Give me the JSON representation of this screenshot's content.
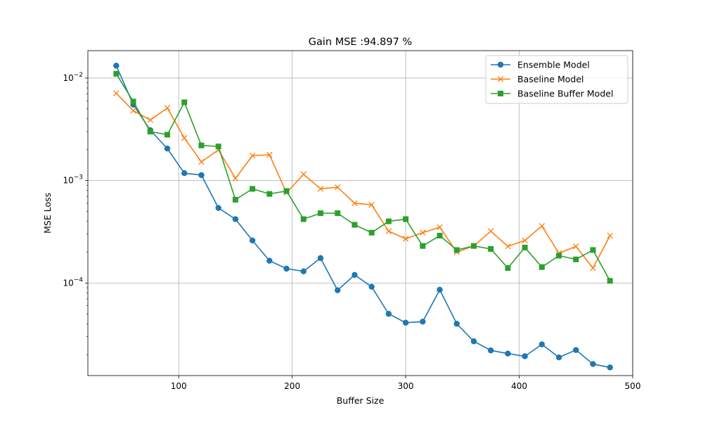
{
  "chart_data": {
    "type": "line",
    "title": "Gain MSE :94.897 %",
    "xlabel": "Buffer Size",
    "ylabel": "MSE Loss",
    "yscale": "log",
    "xlim": [
      20,
      500
    ],
    "ylim": [
      1.25e-05,
      0.0185
    ],
    "grid": true,
    "legend_position": "top-right",
    "x": [
      45,
      60,
      75,
      90,
      105,
      120,
      135,
      150,
      165,
      180,
      195,
      210,
      225,
      240,
      255,
      270,
      285,
      300,
      315,
      330,
      345,
      360,
      375,
      390,
      405,
      420,
      435,
      450,
      465,
      480
    ],
    "x_ticks": [
      {
        "value": 100,
        "label": "100"
      },
      {
        "value": 200,
        "label": "200"
      },
      {
        "value": 300,
        "label": "300"
      },
      {
        "value": 400,
        "label": "400"
      },
      {
        "value": 500,
        "label": "500"
      }
    ],
    "y_ticks": [
      {
        "value": 0.0001,
        "base": "10",
        "exp": "−4"
      },
      {
        "value": 0.001,
        "base": "10",
        "exp": "−3"
      },
      {
        "value": 0.01,
        "base": "10",
        "exp": "−2"
      }
    ],
    "series": [
      {
        "name": "Ensemble Model",
        "color": "#1f77b4",
        "marker": "circle",
        "values": [
          0.0132,
          0.0055,
          0.0031,
          0.00205,
          0.00118,
          0.00113,
          0.00054,
          0.00042,
          0.00026,
          0.000165,
          0.000138,
          0.00013,
          0.000175,
          8.5e-05,
          0.00012,
          9.2e-05,
          5e-05,
          4.1e-05,
          4.2e-05,
          8.6e-05,
          4e-05,
          2.7e-05,
          2.2e-05,
          2.05e-05,
          1.93e-05,
          2.52e-05,
          1.88e-05,
          2.22e-05,
          1.62e-05,
          1.5e-05
        ]
      },
      {
        "name": "Baseline Model",
        "color": "#ff7f0e",
        "marker": "x",
        "values": [
          0.0071,
          0.0048,
          0.0039,
          0.0051,
          0.0026,
          0.00152,
          0.00199,
          0.00105,
          0.00175,
          0.00178,
          0.00076,
          0.00115,
          0.00083,
          0.00086,
          0.0006,
          0.00058,
          0.00032,
          0.00027,
          0.00031,
          0.00035,
          0.0002,
          0.00023,
          0.00032,
          0.000228,
          0.00026,
          0.00036,
          0.000195,
          0.000228,
          0.00014,
          0.00029
        ]
      },
      {
        "name": "Baseline Buffer Model",
        "color": "#2ca02c",
        "marker": "square",
        "values": [
          0.011,
          0.0059,
          0.003,
          0.0028,
          0.0058,
          0.0022,
          0.00215,
          0.00065,
          0.00083,
          0.00074,
          0.00079,
          0.00042,
          0.00048,
          0.00048,
          0.00037,
          0.00031,
          0.0004,
          0.00042,
          0.00023,
          0.00029,
          0.00021,
          0.00023,
          0.000215,
          0.00014,
          0.000222,
          0.000143,
          0.000185,
          0.00017,
          0.00021,
          0.000105
        ]
      }
    ]
  }
}
